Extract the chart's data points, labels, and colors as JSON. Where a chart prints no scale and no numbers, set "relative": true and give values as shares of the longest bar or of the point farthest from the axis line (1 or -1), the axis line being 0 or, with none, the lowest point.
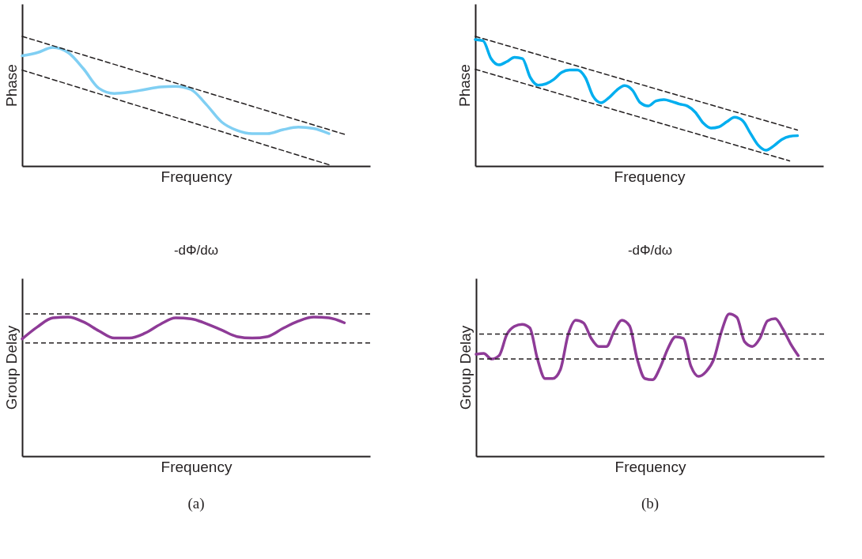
{
  "chart_data": [
    {
      "type": "line",
      "relative": true,
      "grid": false,
      "xlabel": "Frequency",
      "ylabel": "Phase",
      "categories": [
        null,
        null,
        null,
        null,
        null,
        null,
        null,
        null,
        null,
        null,
        null,
        null,
        null,
        null,
        null,
        null,
        null,
        null,
        null,
        null,
        null,
        null
      ],
      "series": [
        {
          "color": "#80cff3",
          "line_style": "solid",
          "values": [
            0.85,
            0.875,
            0.915,
            0.875,
            0.75,
            0.6,
            0.56,
            0.57,
            0.59,
            0.61,
            0.615,
            0.59,
            0.475,
            0.34,
            0.275,
            0.25,
            0.25,
            0.28,
            0.3,
            0.29,
            0.25,
            null
          ]
        },
        {
          "color": "#231f20",
          "line_style": "dashed",
          "values": [
            1.0,
            null,
            null,
            null,
            null,
            null,
            null,
            null,
            null,
            null,
            null,
            null,
            null,
            null,
            null,
            null,
            null,
            null,
            null,
            null,
            null,
            0.245
          ]
        },
        {
          "color": "#231f20",
          "line_style": "dashed",
          "values": [
            0.74,
            null,
            null,
            null,
            null,
            null,
            null,
            null,
            null,
            null,
            null,
            null,
            null,
            null,
            null,
            null,
            null,
            null,
            null,
            null,
            0.01,
            null
          ]
        }
      ]
    },
    {
      "type": "line",
      "relative": true,
      "grid": false,
      "xlabel": "Frequency",
      "ylabel": "Phase",
      "categories": [
        null,
        null,
        null,
        null,
        null,
        null,
        null,
        null,
        null,
        null,
        null,
        null,
        null,
        null,
        null,
        null,
        null,
        null,
        null,
        null,
        null,
        null,
        null,
        null,
        null,
        null,
        null,
        null,
        null,
        null,
        null,
        null,
        null,
        null,
        null,
        null,
        null,
        null,
        null,
        null,
        null,
        null
      ],
      "series": [
        {
          "color": "#00aeef",
          "line_style": "solid",
          "values": [
            0.976,
            0.966,
            0.829,
            0.78,
            0.805,
            0.839,
            0.829,
            0.683,
            0.624,
            0.634,
            0.668,
            0.722,
            0.741,
            0.741,
            0.683,
            0.537,
            0.488,
            0.527,
            0.585,
            0.62,
            0.585,
            0.488,
            0.463,
            0.502,
            0.512,
            0.498,
            0.478,
            0.463,
            0.415,
            0.332,
            0.293,
            0.302,
            0.341,
            0.376,
            0.351,
            0.254,
            0.161,
            0.122,
            0.156,
            0.205,
            0.229,
            0.234
          ]
        },
        {
          "color": "#231f20",
          "line_style": "dashed",
          "values": [
            1.0,
            null,
            null,
            null,
            null,
            null,
            null,
            null,
            null,
            null,
            null,
            null,
            null,
            null,
            null,
            null,
            null,
            null,
            null,
            null,
            null,
            null,
            null,
            null,
            null,
            null,
            null,
            null,
            null,
            null,
            null,
            null,
            null,
            null,
            null,
            null,
            null,
            null,
            null,
            null,
            null,
            0.278
          ]
        },
        {
          "color": "#231f20",
          "line_style": "dashed",
          "values": [
            0.746,
            null,
            null,
            null,
            null,
            null,
            null,
            null,
            null,
            null,
            null,
            null,
            null,
            null,
            null,
            null,
            null,
            null,
            null,
            null,
            null,
            null,
            null,
            null,
            null,
            null,
            null,
            null,
            null,
            null,
            null,
            null,
            null,
            null,
            null,
            null,
            null,
            null,
            null,
            null,
            0.04,
            null
          ]
        }
      ]
    },
    {
      "type": "line",
      "relative": true,
      "grid": false,
      "xlabel": "Frequency",
      "ylabel": "Group Delay",
      "annotations": [
        "-dΦ/dω",
        "(a)"
      ],
      "categories": [
        null,
        null,
        null,
        null,
        null,
        null,
        null,
        null,
        null,
        null,
        null,
        null,
        null,
        null,
        null,
        null,
        null,
        null,
        null,
        null,
        null,
        null
      ],
      "ref_lines": [
        {
          "axis": "y",
          "value": 1.023,
          "color": "#231f20",
          "line_style": "dashed"
        },
        {
          "axis": "y",
          "value": 0.814,
          "color": "#231f20",
          "line_style": "dashed"
        }
      ],
      "series": [
        {
          "color": "#8e3b97",
          "line_style": "solid",
          "values": [
            0.843,
            0.93,
            0.994,
            1.0,
            0.965,
            0.901,
            0.849,
            0.849,
            0.884,
            0.948,
            0.994,
            0.988,
            0.953,
            0.907,
            0.86,
            0.849,
            0.86,
            0.919,
            0.971,
            1.0,
            0.994,
            0.959
          ]
        }
      ]
    },
    {
      "type": "line",
      "relative": true,
      "grid": false,
      "xlabel": "Frequency",
      "ylabel": "Group Delay",
      "annotations": [
        "-dΦ/dω",
        "(b)"
      ],
      "categories": [
        null,
        null,
        null,
        null,
        null,
        null,
        null,
        null,
        null,
        null,
        null,
        null,
        null,
        null,
        null,
        null,
        null,
        null,
        null,
        null,
        null,
        null,
        null,
        null,
        null,
        null,
        null,
        null,
        null,
        null,
        null,
        null,
        null,
        null,
        null,
        null,
        null,
        null,
        null,
        null,
        null,
        null,
        null
      ],
      "ref_lines": [
        {
          "axis": "y",
          "value": 0.859,
          "color": "#231f20",
          "line_style": "dashed"
        },
        {
          "axis": "y",
          "value": 0.683,
          "color": "#231f20",
          "line_style": "dashed"
        }
      ],
      "series": [
        {
          "color": "#8e3b97",
          "line_style": "solid",
          "values": [
            0.717,
            0.722,
            0.683,
            0.707,
            0.854,
            0.912,
            0.927,
            0.902,
            0.683,
            0.546,
            0.546,
            0.61,
            0.854,
            0.956,
            0.937,
            0.829,
            0.771,
            0.771,
            0.878,
            0.956,
            0.917,
            0.683,
            0.546,
            0.537,
            0.624,
            0.756,
            0.839,
            0.829,
            0.634,
            0.561,
            0.595,
            0.683,
            0.878,
            1.0,
            0.976,
            0.805,
            0.771,
            0.829,
            0.951,
            0.966,
            0.893,
            0.79,
            0.707
          ]
        }
      ]
    }
  ]
}
